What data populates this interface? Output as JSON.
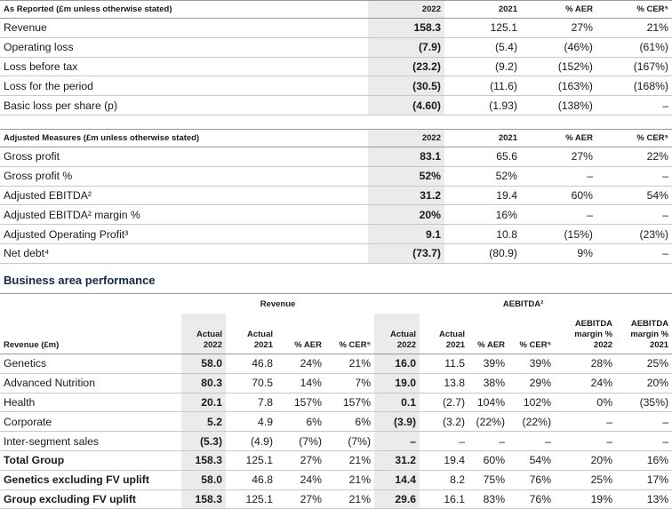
{
  "reported": {
    "header": [
      "As Reported (£m unless otherwise stated)",
      "2022",
      "2021",
      "% AER",
      "% CER⁵"
    ],
    "rows": [
      [
        "Revenue",
        "158.3",
        "125.1",
        "27%",
        "21%"
      ],
      [
        "Operating loss",
        "(7.9)",
        "(5.4)",
        "(46%)",
        "(61%)"
      ],
      [
        "Loss before tax",
        "(23.2)",
        "(9.2)",
        "(152%)",
        "(167%)"
      ],
      [
        "Loss for the period",
        "(30.5)",
        "(11.6)",
        "(163%)",
        "(168%)"
      ],
      [
        "Basic loss per share (p)",
        "(4.60)",
        "(1.93)",
        "(138%)",
        "–"
      ]
    ]
  },
  "adjusted": {
    "header": [
      "Adjusted Measures (£m unless otherwise stated)",
      "2022",
      "2021",
      "% AER",
      "% CER⁵"
    ],
    "rows": [
      [
        "Gross profit",
        "83.1",
        "65.6",
        "27%",
        "22%"
      ],
      [
        "Gross profit %",
        "52%",
        "52%",
        "–",
        "–"
      ],
      [
        "Adjusted EBITDA²",
        "31.2",
        "19.4",
        "60%",
        "54%"
      ],
      [
        "Adjusted EBITDA² margin %",
        "20%",
        "16%",
        "–",
        "–"
      ],
      [
        "Adjusted Operating Profit³",
        "9.1",
        "10.8",
        "(15%)",
        "(23%)"
      ],
      [
        "Net debt⁴",
        "(73.7)",
        "(80.9)",
        "9%",
        "–"
      ]
    ]
  },
  "business": {
    "title": "Business area performance",
    "group_revenue": "Revenue",
    "group_aebitda": "AEBITDA²",
    "header": [
      "Revenue (£m)",
      [
        "Actual",
        "2022"
      ],
      [
        "Actual",
        "2021"
      ],
      [
        "% AER"
      ],
      [
        "% CER⁵"
      ],
      [
        "Actual",
        "2022"
      ],
      [
        "Actual",
        "2021"
      ],
      [
        "% AER"
      ],
      [
        "% CER⁵"
      ],
      [
        "AEBITDA",
        "margin %",
        "2022"
      ],
      [
        "AEBITDA",
        "margin %",
        "2021"
      ]
    ],
    "rows": [
      [
        "Genetics",
        "58.0",
        "46.8",
        "24%",
        "21%",
        "16.0",
        "11.5",
        "39%",
        "39%",
        "28%",
        "25%"
      ],
      [
        "Advanced Nutrition",
        "80.3",
        "70.5",
        "14%",
        "7%",
        "19.0",
        "13.8",
        "38%",
        "29%",
        "24%",
        "20%"
      ],
      [
        "Health",
        "20.1",
        "7.8",
        "157%",
        "157%",
        "0.1",
        "(2.7)",
        "104%",
        "102%",
        "0%",
        "(35%)"
      ],
      [
        "Corporate",
        "5.2",
        "4.9",
        "6%",
        "6%",
        "(3.9)",
        "(3.2)",
        "(22%)",
        "(22%)",
        "–",
        "–"
      ],
      [
        "Inter-segment sales",
        "(5.3)",
        "(4.9)",
        "(7%)",
        "(7%)",
        "–",
        "–",
        "–",
        "–",
        "–",
        "–"
      ]
    ],
    "totals": [
      [
        "Total Group",
        "158.3",
        "125.1",
        "27%",
        "21%",
        "31.2",
        "19.4",
        "60%",
        "54%",
        "20%",
        "16%"
      ],
      [
        "Genetics excluding FV uplift",
        "58.0",
        "46.8",
        "24%",
        "21%",
        "14.4",
        "8.2",
        "75%",
        "76%",
        "25%",
        "17%"
      ],
      [
        "Group excluding FV uplift",
        "158.3",
        "125.1",
        "27%",
        "21%",
        "29.6",
        "16.1",
        "83%",
        "76%",
        "19%",
        "13%"
      ]
    ]
  }
}
